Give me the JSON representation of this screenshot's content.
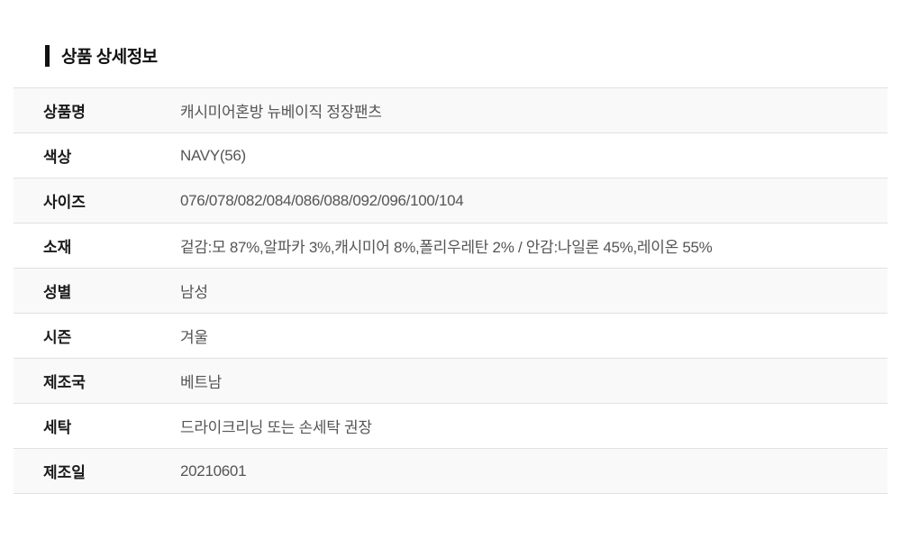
{
  "page": {
    "title": "상품 상세정보"
  },
  "table": {
    "rows": [
      {
        "label": "상품명",
        "value": "캐시미어혼방 뉴베이직 정장팬츠"
      },
      {
        "label": "색상",
        "value": "NAVY(56)"
      },
      {
        "label": "사이즈",
        "value": "076/078/082/084/086/088/092/096/100/104"
      },
      {
        "label": "소재",
        "value": "겉감:모 87%,알파카 3%,캐시미어 8%,폴리우레탄 2% / 안감:나일론 45%,레이온 55%"
      },
      {
        "label": "성별",
        "value": "남성"
      },
      {
        "label": "시즌",
        "value": "겨울"
      },
      {
        "label": "제조국",
        "value": "베트남"
      },
      {
        "label": "세탁",
        "value": "드라이크리닝 또는 손세탁 권장"
      },
      {
        "label": "제조일",
        "value": "20210601"
      }
    ]
  },
  "theme": {
    "stripe_bg": "#f9f9f9",
    "border": "#e1e1e1",
    "label_color": "#1a1a1a",
    "value_color": "#555555",
    "accent_bar": "#111111"
  }
}
